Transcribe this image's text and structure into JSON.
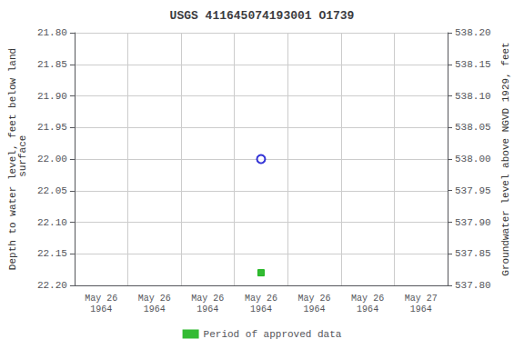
{
  "chart_data": {
    "type": "scatter",
    "title": "USGS 411645074193001 O1739",
    "y_label": "Depth to water level, feet below land\n surface",
    "y2_label": "Groundwater level above NGVD 1929, feet",
    "categories": [
      "May 26\n1964",
      "May 26\n1964",
      "May 26\n1964",
      "May 26\n1964",
      "May 26\n1964",
      "May 26\n1964",
      "May 27\n1964"
    ],
    "series": [
      {
        "color": "#0000cc",
        "marker": "circle_open",
        "values": [
          null,
          null,
          null,
          22.0,
          null,
          null,
          null
        ]
      },
      {
        "name": "Period of approved data",
        "color": "#00aa00",
        "marker": "square",
        "values": [
          null,
          null,
          null,
          22.18,
          null,
          null,
          null
        ]
      }
    ],
    "ylim": [
      22.2,
      21.8
    ],
    "yticks": [
      {
        "value": 21.8,
        "label": "21.80"
      },
      {
        "value": 21.85,
        "label": "21.85"
      },
      {
        "value": 21.9,
        "label": "21.90"
      },
      {
        "value": 21.95,
        "label": "21.95"
      },
      {
        "value": 22.0,
        "label": "22.00"
      },
      {
        "value": 22.05,
        "label": "22.05"
      },
      {
        "value": 22.1,
        "label": "22.10"
      },
      {
        "value": 22.15,
        "label": "22.15"
      },
      {
        "value": 22.2,
        "label": "22.20"
      }
    ],
    "y2lim": [
      537.8,
      538.2
    ],
    "y2ticks": [
      {
        "value": 538.2,
        "label": "538.20"
      },
      {
        "value": 538.15,
        "label": "538.15"
      },
      {
        "value": 538.1,
        "label": "538.10"
      },
      {
        "value": 538.05,
        "label": "538.05"
      },
      {
        "value": 538.0,
        "label": "538.00"
      },
      {
        "value": 537.95,
        "label": "537.95"
      },
      {
        "value": 537.9,
        "label": "537.90"
      },
      {
        "value": 537.85,
        "label": "537.85"
      },
      {
        "value": 537.8,
        "label": "537.80"
      }
    ],
    "grid": true,
    "legend": "bottom"
  }
}
